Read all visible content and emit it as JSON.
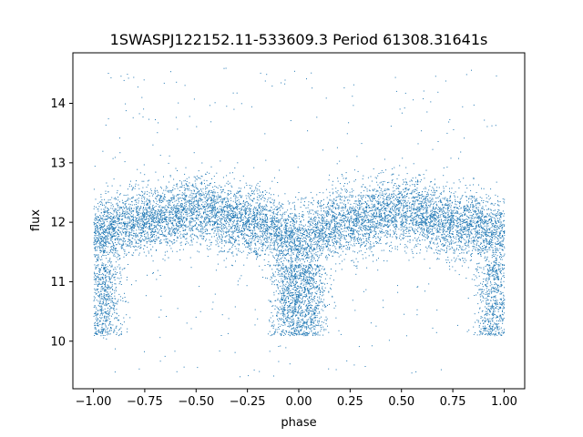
{
  "chart_data": {
    "type": "scatter",
    "title": "1SWASPJ122152.11-533609.3 Period 61308.31641s",
    "xlabel": "phase",
    "ylabel": "flux",
    "xlim": [
      -1.1,
      1.1
    ],
    "ylim": [
      9.2,
      14.85
    ],
    "x_ticks": [
      -1.0,
      -0.75,
      -0.5,
      -0.25,
      0.0,
      0.25,
      0.5,
      0.75,
      1.0
    ],
    "x_tick_labels": [
      "−1.00",
      "−0.75",
      "−0.50",
      "−0.25",
      "0.00",
      "0.25",
      "0.50",
      "0.75",
      "1.00"
    ],
    "y_ticks": [
      10,
      11,
      12,
      13,
      14
    ],
    "y_tick_labels": [
      "10",
      "11",
      "12",
      "13",
      "14"
    ],
    "grid": false,
    "marker_color": "#1f77b4",
    "series": [
      {
        "x_range": [
          -1.0,
          1.0
        ],
        "mean_profile": {
          "phase": [
            -1.0,
            -0.75,
            -0.5,
            -0.25,
            0.0,
            0.25,
            0.5,
            0.75,
            1.0
          ],
          "flux": [
            11.8,
            12.05,
            12.2,
            12.0,
            11.7,
            12.05,
            12.2,
            12.0,
            11.8
          ]
        },
        "dip_clusters": [
          {
            "phase_center": -0.95,
            "flux_range": [
              10.1,
              11.3
            ]
          },
          {
            "phase_center": -0.05,
            "flux_range": [
              10.1,
              11.3
            ]
          },
          {
            "phase_center": 0.05,
            "flux_range": [
              10.1,
              11.3
            ]
          },
          {
            "phase_center": 0.95,
            "flux_range": [
              10.1,
              11.3
            ]
          }
        ],
        "outlier_range": [
          9.4,
          14.6
        ]
      }
    ]
  }
}
